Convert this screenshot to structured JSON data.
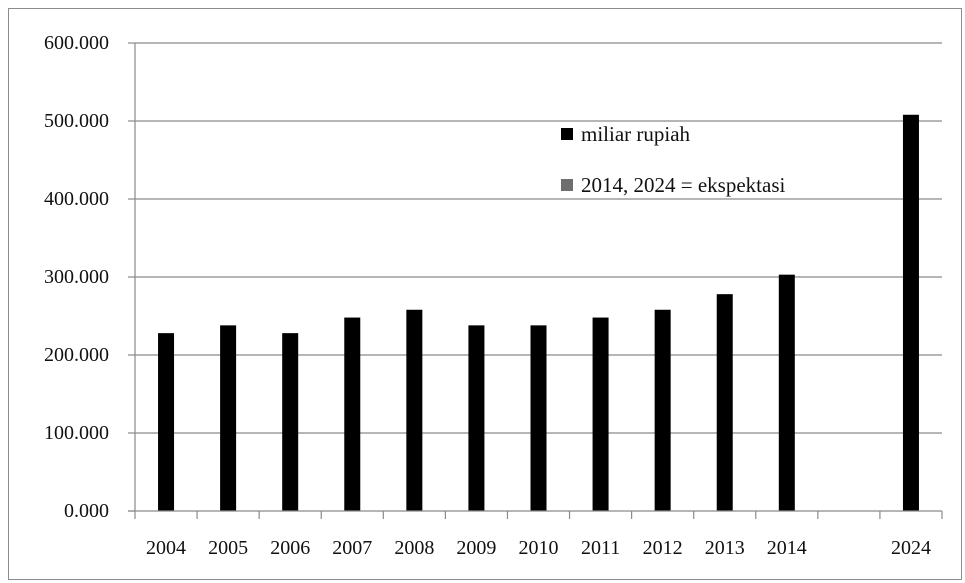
{
  "chart_data": {
    "type": "bar",
    "title": "",
    "xlabel": "",
    "ylabel": "",
    "categories": [
      "2004",
      "2005",
      "2006",
      "2007",
      "2008",
      "2009",
      "2010",
      "2011",
      "2012",
      "2013",
      "2014",
      "",
      "2024"
    ],
    "series": [
      {
        "name": "miliar rupiah",
        "values": [
          228000,
          238000,
          228000,
          248000,
          258000,
          238000,
          238000,
          248000,
          258000,
          278000,
          303000,
          null,
          508000
        ],
        "color": "#000000"
      }
    ],
    "ylim": [
      0,
      600000
    ],
    "y_ticks": [
      {
        "value": 0,
        "label": "0.000"
      },
      {
        "value": 100000,
        "label": "100.000"
      },
      {
        "value": 200000,
        "label": "200.000"
      },
      {
        "value": 300000,
        "label": "300.000"
      },
      {
        "value": 400000,
        "label": "400.000"
      },
      {
        "value": 500000,
        "label": "500.000"
      },
      {
        "value": 600000,
        "label": "600.000"
      }
    ],
    "grid": true,
    "legend": {
      "placement": "inside-top-right",
      "entries": [
        {
          "label": "miliar rupiah",
          "color": "#000000"
        },
        {
          "label": "2014, 2024 = ekspektasi",
          "color": "#6e6e6e"
        }
      ]
    }
  }
}
